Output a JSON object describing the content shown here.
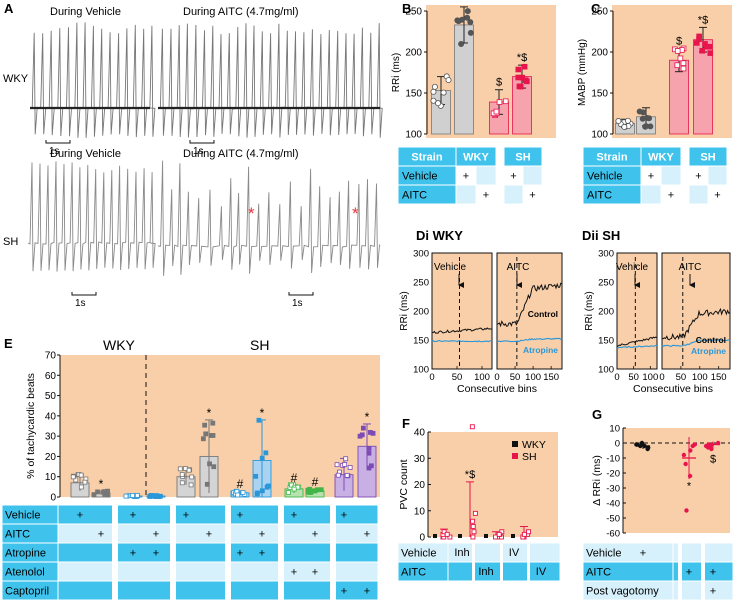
{
  "colors": {
    "panel_bg": "#f8cfa9",
    "table_cyan": "#3fc3ec",
    "table_light": "#d6f1fb",
    "gray": "#bdbdbd",
    "pink": "#e8144c",
    "pink_light": "#f6a3ad",
    "blue": "#2b97d8",
    "green": "#43b549",
    "purple": "#7d4bb4",
    "trace": "#7a7a7a",
    "star_red": "#e8343c"
  },
  "panelA": {
    "letter": "A",
    "row_labels": [
      "WKY",
      "SH"
    ],
    "col_titles": [
      "During Vehicle",
      "During AITC (4.7mg/ml)"
    ],
    "scale_label": "1s"
  },
  "panelB": {
    "letter": "B",
    "table": {
      "headers": [
        "Strain",
        "WKY",
        "SH"
      ],
      "rows": [
        "Vehicle",
        "AITC"
      ],
      "mark": "+"
    }
  },
  "panelC": {
    "letter": "C",
    "table": {
      "headers": [
        "Strain",
        "WKY",
        "SH"
      ],
      "rows": [
        "Vehicle",
        "AITC"
      ],
      "mark": "+"
    }
  },
  "panelD": {
    "titles": [
      "Di WKY",
      "Dii SH"
    ],
    "arrow_labels": [
      "Vehicle",
      "AITC"
    ],
    "series_labels": [
      "Control",
      "Atropine"
    ]
  },
  "panelE": {
    "letter": "E",
    "group_labels": [
      "WKY",
      "SH"
    ],
    "table_rows": [
      "Vehicle",
      "AITC",
      "Atropine",
      "Atenolol",
      "Captopril"
    ],
    "mark": "+"
  },
  "panelF": {
    "letter": "F",
    "legend": [
      "WKY",
      "SH"
    ],
    "table_rows": [
      "Vehicle",
      "AITC"
    ],
    "cells": [
      "Inh",
      "IV"
    ]
  },
  "panelG": {
    "letter": "G",
    "table_rows": [
      "Vehicle",
      "AITC",
      "Post vagotomy"
    ],
    "mark": "+"
  },
  "chart_data": [
    {
      "id": "B",
      "type": "bar",
      "ylabel": "RRi (ms)",
      "ylim": [
        100,
        250
      ],
      "yticks": [
        100,
        150,
        200,
        250
      ],
      "categories": [
        "WKY Vehicle",
        "WKY AITC",
        "SH Vehicle",
        "SH AITC"
      ],
      "values": [
        153,
        233,
        139,
        170
      ],
      "errors": [
        17,
        22,
        15,
        14
      ],
      "annotations": [
        "",
        "*",
        "$",
        "*$"
      ]
    },
    {
      "id": "C",
      "type": "bar",
      "ylabel": "MABP (mmHg)",
      "ylim": [
        100,
        250
      ],
      "yticks": [
        100,
        150,
        200,
        250
      ],
      "categories": [
        "WKY Vehicle",
        "WKY AITC",
        "SH Vehicle",
        "SH AITC"
      ],
      "values": [
        113,
        121,
        190,
        215
      ],
      "errors": [
        5,
        11,
        14,
        15
      ],
      "annotations": [
        "",
        "",
        "$",
        "*$"
      ]
    },
    {
      "id": "Di",
      "type": "line",
      "title": "WKY",
      "xlabel": "Consecutive bins",
      "ylabel": "RRi (ms)",
      "ylim": [
        100,
        300
      ],
      "yticks": [
        100,
        150,
        200,
        250,
        300
      ],
      "xlim": [
        0,
        120
      ],
      "xticks": [
        0,
        50,
        100
      ],
      "series": [
        {
          "name": "Control",
          "start": 163,
          "end": 170
        },
        {
          "name": "Atropine",
          "start": 148,
          "end": 148
        }
      ]
    },
    {
      "id": "Di-AITC",
      "type": "line",
      "xlabel": "Consecutive bins",
      "ylim": [
        100,
        300
      ],
      "xlim": [
        0,
        180
      ],
      "xticks": [
        0,
        50,
        100,
        150
      ],
      "series": [
        {
          "name": "Control",
          "start": 178,
          "end": 245
        },
        {
          "name": "Atropine",
          "start": 148,
          "end": 152
        }
      ]
    },
    {
      "id": "Dii",
      "type": "line",
      "title": "SH",
      "xlabel": "Consecutive bins",
      "ylabel": "RRi (ms)",
      "ylim": [
        100,
        300
      ],
      "yticks": [
        100,
        150,
        200,
        250,
        300
      ],
      "xlim": [
        0,
        120
      ],
      "xticks": [
        0,
        50,
        100
      ],
      "series": [
        {
          "name": "Control",
          "start": 140,
          "end": 155
        },
        {
          "name": "Atropine",
          "start": 137,
          "end": 140
        }
      ]
    },
    {
      "id": "Dii-AITC",
      "type": "line",
      "xlabel": "Consecutive bins",
      "ylim": [
        100,
        300
      ],
      "xlim": [
        0,
        180
      ],
      "xticks": [
        0,
        50,
        100,
        150
      ],
      "series": [
        {
          "name": "Control",
          "start": 155,
          "end": 195
        },
        {
          "name": "Atropine",
          "start": 140,
          "end": 150
        }
      ]
    },
    {
      "id": "E",
      "type": "bar",
      "ylabel": "% of tachycardic beats",
      "ylim": [
        0,
        70
      ],
      "yticks": [
        0,
        10,
        20,
        30,
        40,
        50,
        60,
        70
      ],
      "bars": [
        {
          "value": 7,
          "error": 4,
          "color": "gray",
          "annot": ""
        },
        {
          "value": 2,
          "error": 1,
          "color": "gray",
          "annot": "*"
        },
        {
          "value": 0.5,
          "error": 0.3,
          "color": "blue",
          "annot": ""
        },
        {
          "value": 0.5,
          "error": 0.3,
          "color": "blue",
          "annot": ""
        },
        {
          "value": 10,
          "error": 4,
          "color": "gray",
          "annot": ""
        },
        {
          "value": 20,
          "error": 18,
          "color": "gray",
          "annot": "*"
        },
        {
          "value": 2,
          "error": 1,
          "color": "blue",
          "annot": "#"
        },
        {
          "value": 18,
          "error": 20,
          "color": "blue",
          "annot": "*"
        },
        {
          "value": 4,
          "error": 2,
          "color": "green",
          "annot": "#"
        },
        {
          "value": 3,
          "error": 1,
          "color": "green",
          "annot": "#"
        },
        {
          "value": 11,
          "error": 8,
          "color": "purple",
          "annot": ""
        },
        {
          "value": 25,
          "error": 11,
          "color": "purple",
          "annot": "*"
        }
      ]
    },
    {
      "id": "F",
      "type": "scatter",
      "ylabel": "PVC count",
      "ylim": [
        0,
        40
      ],
      "yticks": [
        0,
        10,
        20,
        30,
        40
      ],
      "groups": [
        {
          "wky": 0,
          "sh": 1,
          "sh_err": 2
        },
        {
          "wky": 0,
          "sh": 8,
          "sh_err": 13,
          "annot": "*$"
        },
        {
          "wky": 0,
          "sh": 0,
          "sh_err": 2
        },
        {
          "wky": 0,
          "sh": 0,
          "sh_err": 4
        }
      ]
    },
    {
      "id": "G",
      "type": "scatter",
      "ylabel": "Δ RRi (ms)",
      "ylim": [
        -60,
        10
      ],
      "yticks": [
        10,
        0,
        -10,
        -20,
        -30,
        -40,
        -50,
        -60
      ],
      "values": [
        -2,
        -10,
        -1
      ],
      "errors": [
        2,
        14,
        2
      ],
      "annotations": [
        "",
        "*",
        "$"
      ]
    }
  ]
}
